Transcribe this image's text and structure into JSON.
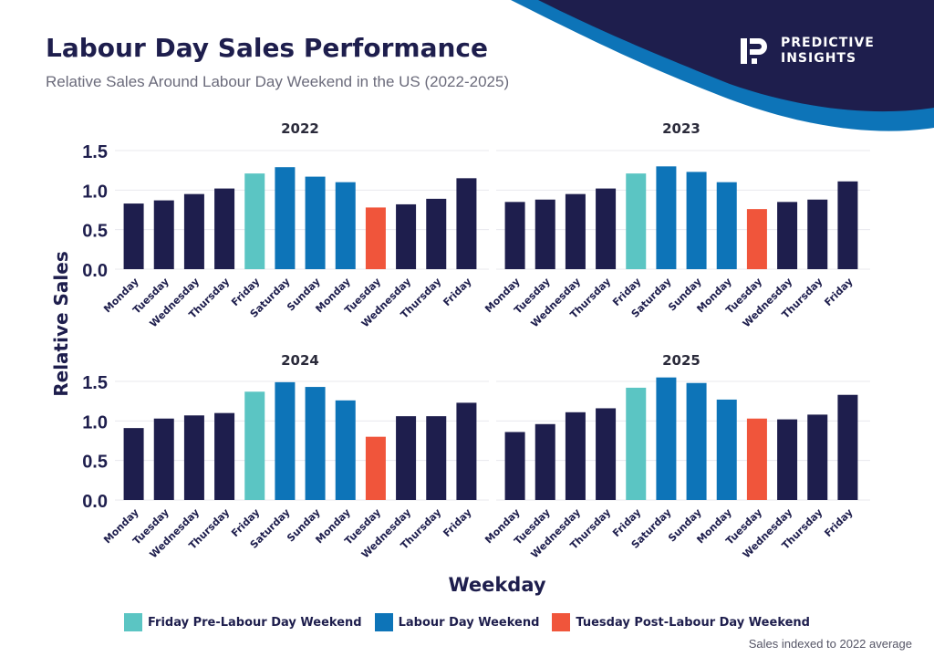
{
  "header": {
    "title": "Labour Day Sales Performance",
    "subtitle": "Relative Sales Around Labour Day Weekend in the US (2022-2025)"
  },
  "brand": {
    "line1": "PREDICTIVE",
    "line2": "INSIGHTS",
    "logo_icon": "predictive-insights-logo-icon"
  },
  "colors": {
    "navy": "#1e1e4d",
    "teal": "#5bc5c3",
    "blue": "#0d74b8",
    "red": "#f0553b",
    "wave_dark": "#1e1e4d",
    "wave_blue": "#0d74b8"
  },
  "legend": [
    {
      "label": "Friday Pre-Labour Day Weekend",
      "color": "#5bc5c3"
    },
    {
      "label": "Labour Day Weekend",
      "color": "#0d74b8"
    },
    {
      "label": "Tuesday Post-Labour Day Weekend",
      "color": "#f0553b"
    }
  ],
  "footnote": "Sales indexed to 2022 average",
  "chart_data": [
    {
      "type": "bar",
      "title": "2022",
      "xlabel": "Weekday",
      "ylabel": "Relative Sales",
      "ylim": [
        0,
        1.5
      ],
      "yticks": [
        "0.0",
        "0.5",
        "1.0",
        "1.5"
      ],
      "categories": [
        "Monday",
        "Tuesday",
        "Wednesday",
        "Thursday",
        "Friday",
        "Saturday",
        "Sunday",
        "Monday",
        "Tuesday",
        "Wednesday",
        "Thursday",
        "Friday"
      ],
      "values": [
        0.83,
        0.87,
        0.95,
        1.02,
        1.21,
        1.29,
        1.17,
        1.1,
        0.78,
        0.82,
        0.89,
        1.15
      ],
      "groups": [
        "normal",
        "normal",
        "normal",
        "normal",
        "pre",
        "weekend",
        "weekend",
        "weekend",
        "post",
        "normal",
        "normal",
        "normal"
      ]
    },
    {
      "type": "bar",
      "title": "2023",
      "xlabel": "Weekday",
      "ylabel": "Relative Sales",
      "ylim": [
        0,
        1.5
      ],
      "yticks": [
        "0.0",
        "0.5",
        "1.0",
        "1.5"
      ],
      "categories": [
        "Monday",
        "Tuesday",
        "Wednesday",
        "Thursday",
        "Friday",
        "Saturday",
        "Sunday",
        "Monday",
        "Tuesday",
        "Wednesday",
        "Thursday",
        "Friday"
      ],
      "values": [
        0.85,
        0.88,
        0.95,
        1.02,
        1.21,
        1.3,
        1.23,
        1.1,
        0.76,
        0.85,
        0.88,
        1.11
      ],
      "groups": [
        "normal",
        "normal",
        "normal",
        "normal",
        "pre",
        "weekend",
        "weekend",
        "weekend",
        "post",
        "normal",
        "normal",
        "normal"
      ]
    },
    {
      "type": "bar",
      "title": "2024",
      "xlabel": "Weekday",
      "ylabel": "Relative Sales",
      "ylim": [
        0,
        1.5
      ],
      "yticks": [
        "0.0",
        "0.5",
        "1.0",
        "1.5"
      ],
      "categories": [
        "Monday",
        "Tuesday",
        "Wednesday",
        "Thursday",
        "Friday",
        "Saturday",
        "Sunday",
        "Monday",
        "Tuesday",
        "Wednesday",
        "Thursday",
        "Friday"
      ],
      "values": [
        0.91,
        1.03,
        1.07,
        1.1,
        1.37,
        1.49,
        1.43,
        1.26,
        0.8,
        1.06,
        1.06,
        1.23
      ],
      "groups": [
        "normal",
        "normal",
        "normal",
        "normal",
        "pre",
        "weekend",
        "weekend",
        "weekend",
        "post",
        "normal",
        "normal",
        "normal"
      ]
    },
    {
      "type": "bar",
      "title": "2025",
      "xlabel": "Weekday",
      "ylabel": "Relative Sales",
      "ylim": [
        0,
        1.5
      ],
      "yticks": [
        "0.0",
        "0.5",
        "1.0",
        "1.5"
      ],
      "categories": [
        "Monday",
        "Tuesday",
        "Wednesday",
        "Thursday",
        "Friday",
        "Saturday",
        "Sunday",
        "Monday",
        "Tuesday",
        "Wednesday",
        "Thursday",
        "Friday"
      ],
      "values": [
        0.86,
        0.96,
        1.11,
        1.16,
        1.42,
        1.55,
        1.48,
        1.27,
        1.03,
        1.02,
        1.08,
        1.33
      ],
      "groups": [
        "normal",
        "normal",
        "normal",
        "normal",
        "pre",
        "weekend",
        "weekend",
        "weekend",
        "post",
        "normal",
        "normal",
        "normal"
      ]
    }
  ],
  "axis": {
    "y_label": "Relative Sales",
    "x_label": "Weekday"
  }
}
